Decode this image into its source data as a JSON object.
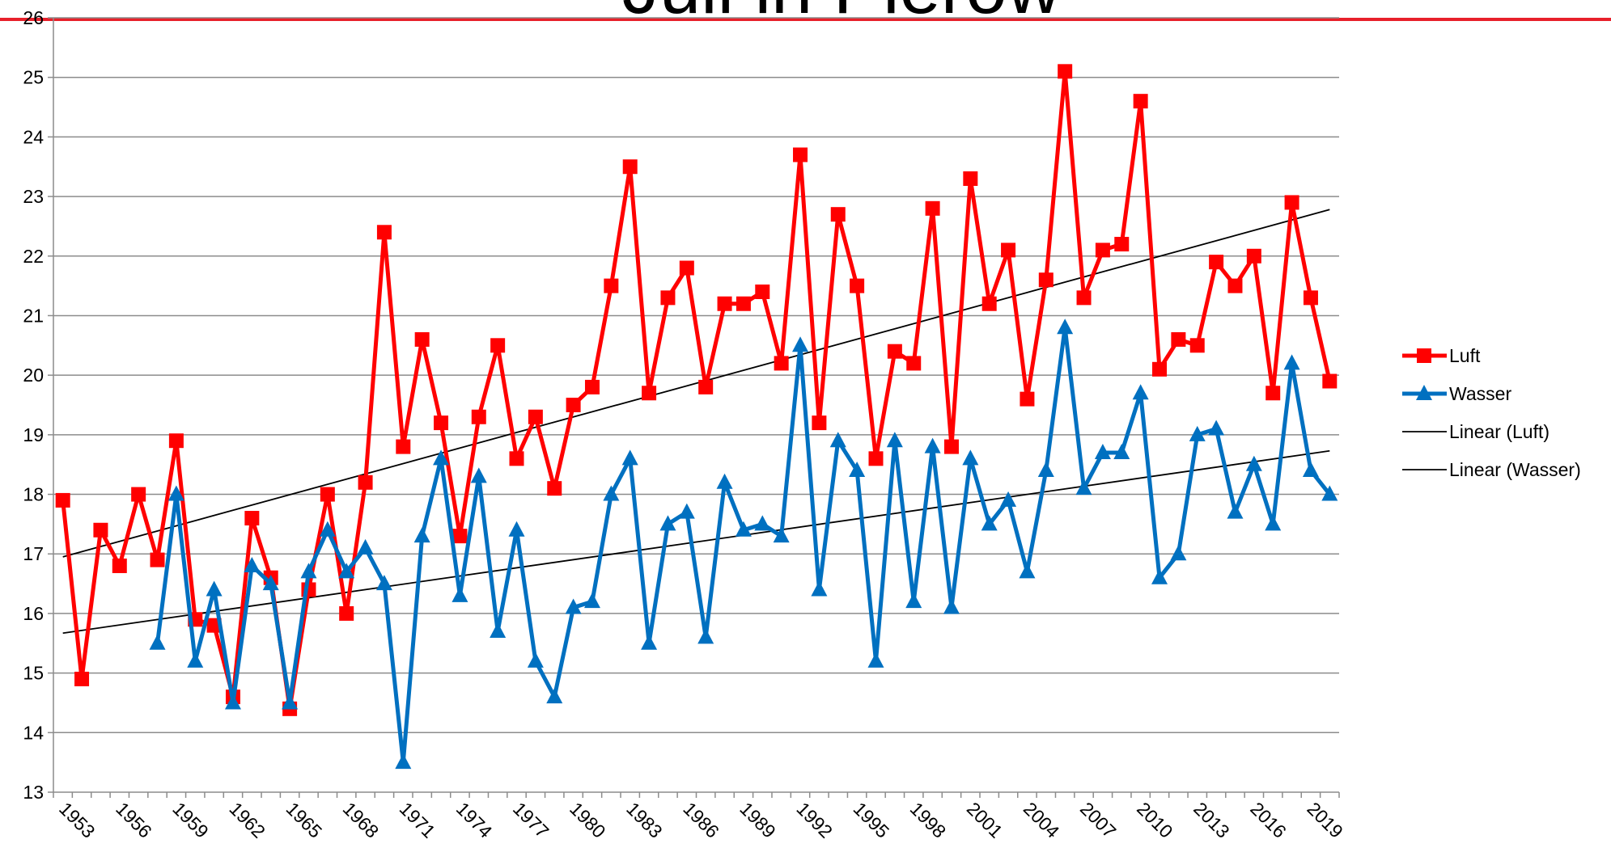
{
  "chart_data": {
    "type": "line",
    "title": "Juli in Plerow",
    "categories": [
      "1953",
      null,
      null,
      "1956",
      null,
      null,
      "1959",
      null,
      null,
      "1962",
      null,
      null,
      "1965",
      null,
      null,
      "1968",
      null,
      null,
      "1971",
      null,
      null,
      "1974",
      null,
      null,
      "1977",
      null,
      null,
      "1980",
      null,
      null,
      "1983",
      null,
      null,
      "1986",
      null,
      null,
      "1989",
      null,
      null,
      "1992",
      null,
      null,
      "1995",
      null,
      null,
      "1998",
      null,
      null,
      "2001",
      null,
      null,
      "2004",
      null,
      null,
      "2007",
      null,
      null,
      "2010",
      null,
      null,
      "2013",
      null,
      null,
      "2016",
      null,
      null,
      "2019",
      null
    ],
    "series": [
      {
        "name": "Luft",
        "color": "#ff0000",
        "marker": "square",
        "values": [
          17.9,
          14.9,
          17.4,
          16.8,
          18.0,
          16.9,
          18.9,
          15.9,
          15.8,
          14.6,
          17.6,
          16.6,
          14.4,
          16.4,
          18.0,
          16.0,
          18.2,
          22.4,
          18.8,
          20.6,
          19.2,
          17.3,
          19.3,
          20.5,
          18.6,
          19.3,
          18.1,
          19.5,
          19.8,
          21.5,
          23.5,
          19.7,
          21.3,
          21.8,
          19.8,
          21.2,
          21.2,
          21.4,
          20.2,
          23.7,
          19.2,
          22.7,
          21.5,
          18.6,
          20.4,
          20.2,
          22.8,
          18.8,
          23.3,
          21.2,
          22.1,
          19.6,
          21.6,
          25.1,
          21.3,
          22.1,
          22.2,
          24.6,
          20.1,
          20.6,
          20.5,
          21.9,
          21.5,
          22.0,
          19.7,
          22.9,
          21.3,
          19.9
        ]
      },
      {
        "name": "Wasser",
        "color": "#0070c0",
        "marker": "triangle",
        "values": [
          null,
          null,
          null,
          null,
          null,
          15.5,
          18.0,
          15.2,
          16.4,
          14.5,
          16.8,
          16.5,
          14.5,
          16.7,
          17.4,
          16.7,
          17.1,
          16.5,
          13.5,
          17.3,
          18.6,
          16.3,
          18.3,
          15.7,
          17.4,
          15.2,
          14.6,
          16.1,
          16.2,
          18.0,
          18.6,
          15.5,
          17.5,
          17.7,
          15.6,
          18.2,
          17.4,
          17.5,
          17.3,
          20.5,
          16.4,
          18.9,
          18.4,
          15.2,
          18.9,
          16.2,
          18.8,
          16.1,
          18.6,
          17.5,
          17.9,
          16.7,
          18.4,
          20.8,
          18.1,
          18.7,
          18.7,
          19.7,
          16.6,
          17.0,
          19.0,
          19.1,
          17.7,
          18.5,
          17.5,
          20.2,
          18.4,
          18.0
        ]
      }
    ],
    "trendlines": [
      {
        "name": "Linear (Luft)",
        "color": "#000000",
        "start": 16.95,
        "end": 22.78
      },
      {
        "name": "Linear (Wasser)",
        "color": "#000000",
        "start": 15.67,
        "end": 18.73
      }
    ],
    "ylim": [
      13,
      26
    ],
    "yticks": [
      13,
      14,
      15,
      16,
      17,
      18,
      19,
      20,
      21,
      22,
      23,
      24,
      25,
      26
    ],
    "grid": true,
    "legend": "right"
  }
}
